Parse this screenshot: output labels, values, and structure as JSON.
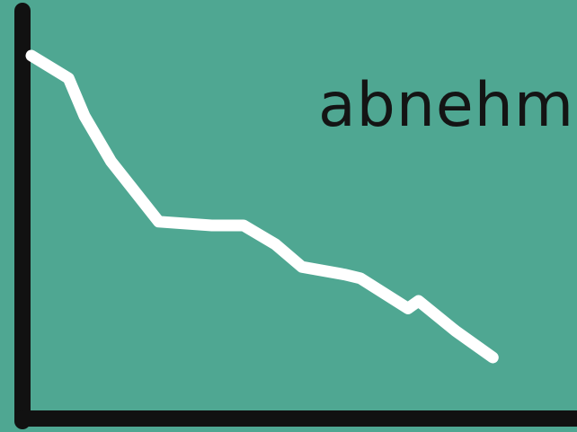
{
  "chart_data": {
    "type": "line",
    "title": "",
    "xlabel": "",
    "ylabel": "",
    "annotation": "abnehm",
    "xlim": [
      0,
      100
    ],
    "ylim": [
      0,
      100
    ],
    "grid": false,
    "colors": {
      "background": "#4fa792",
      "axis": "#111111",
      "line": "#ffffff",
      "label": "#141414"
    },
    "series": [
      {
        "x": [
          0,
          7,
          10,
          15,
          24,
          34,
          40,
          46,
          51,
          59,
          62,
          71,
          73,
          80,
          87
        ],
        "y": [
          90,
          84,
          74,
          62,
          46,
          45,
          45,
          40,
          34,
          32,
          31,
          23,
          25,
          17,
          10
        ]
      }
    ]
  }
}
